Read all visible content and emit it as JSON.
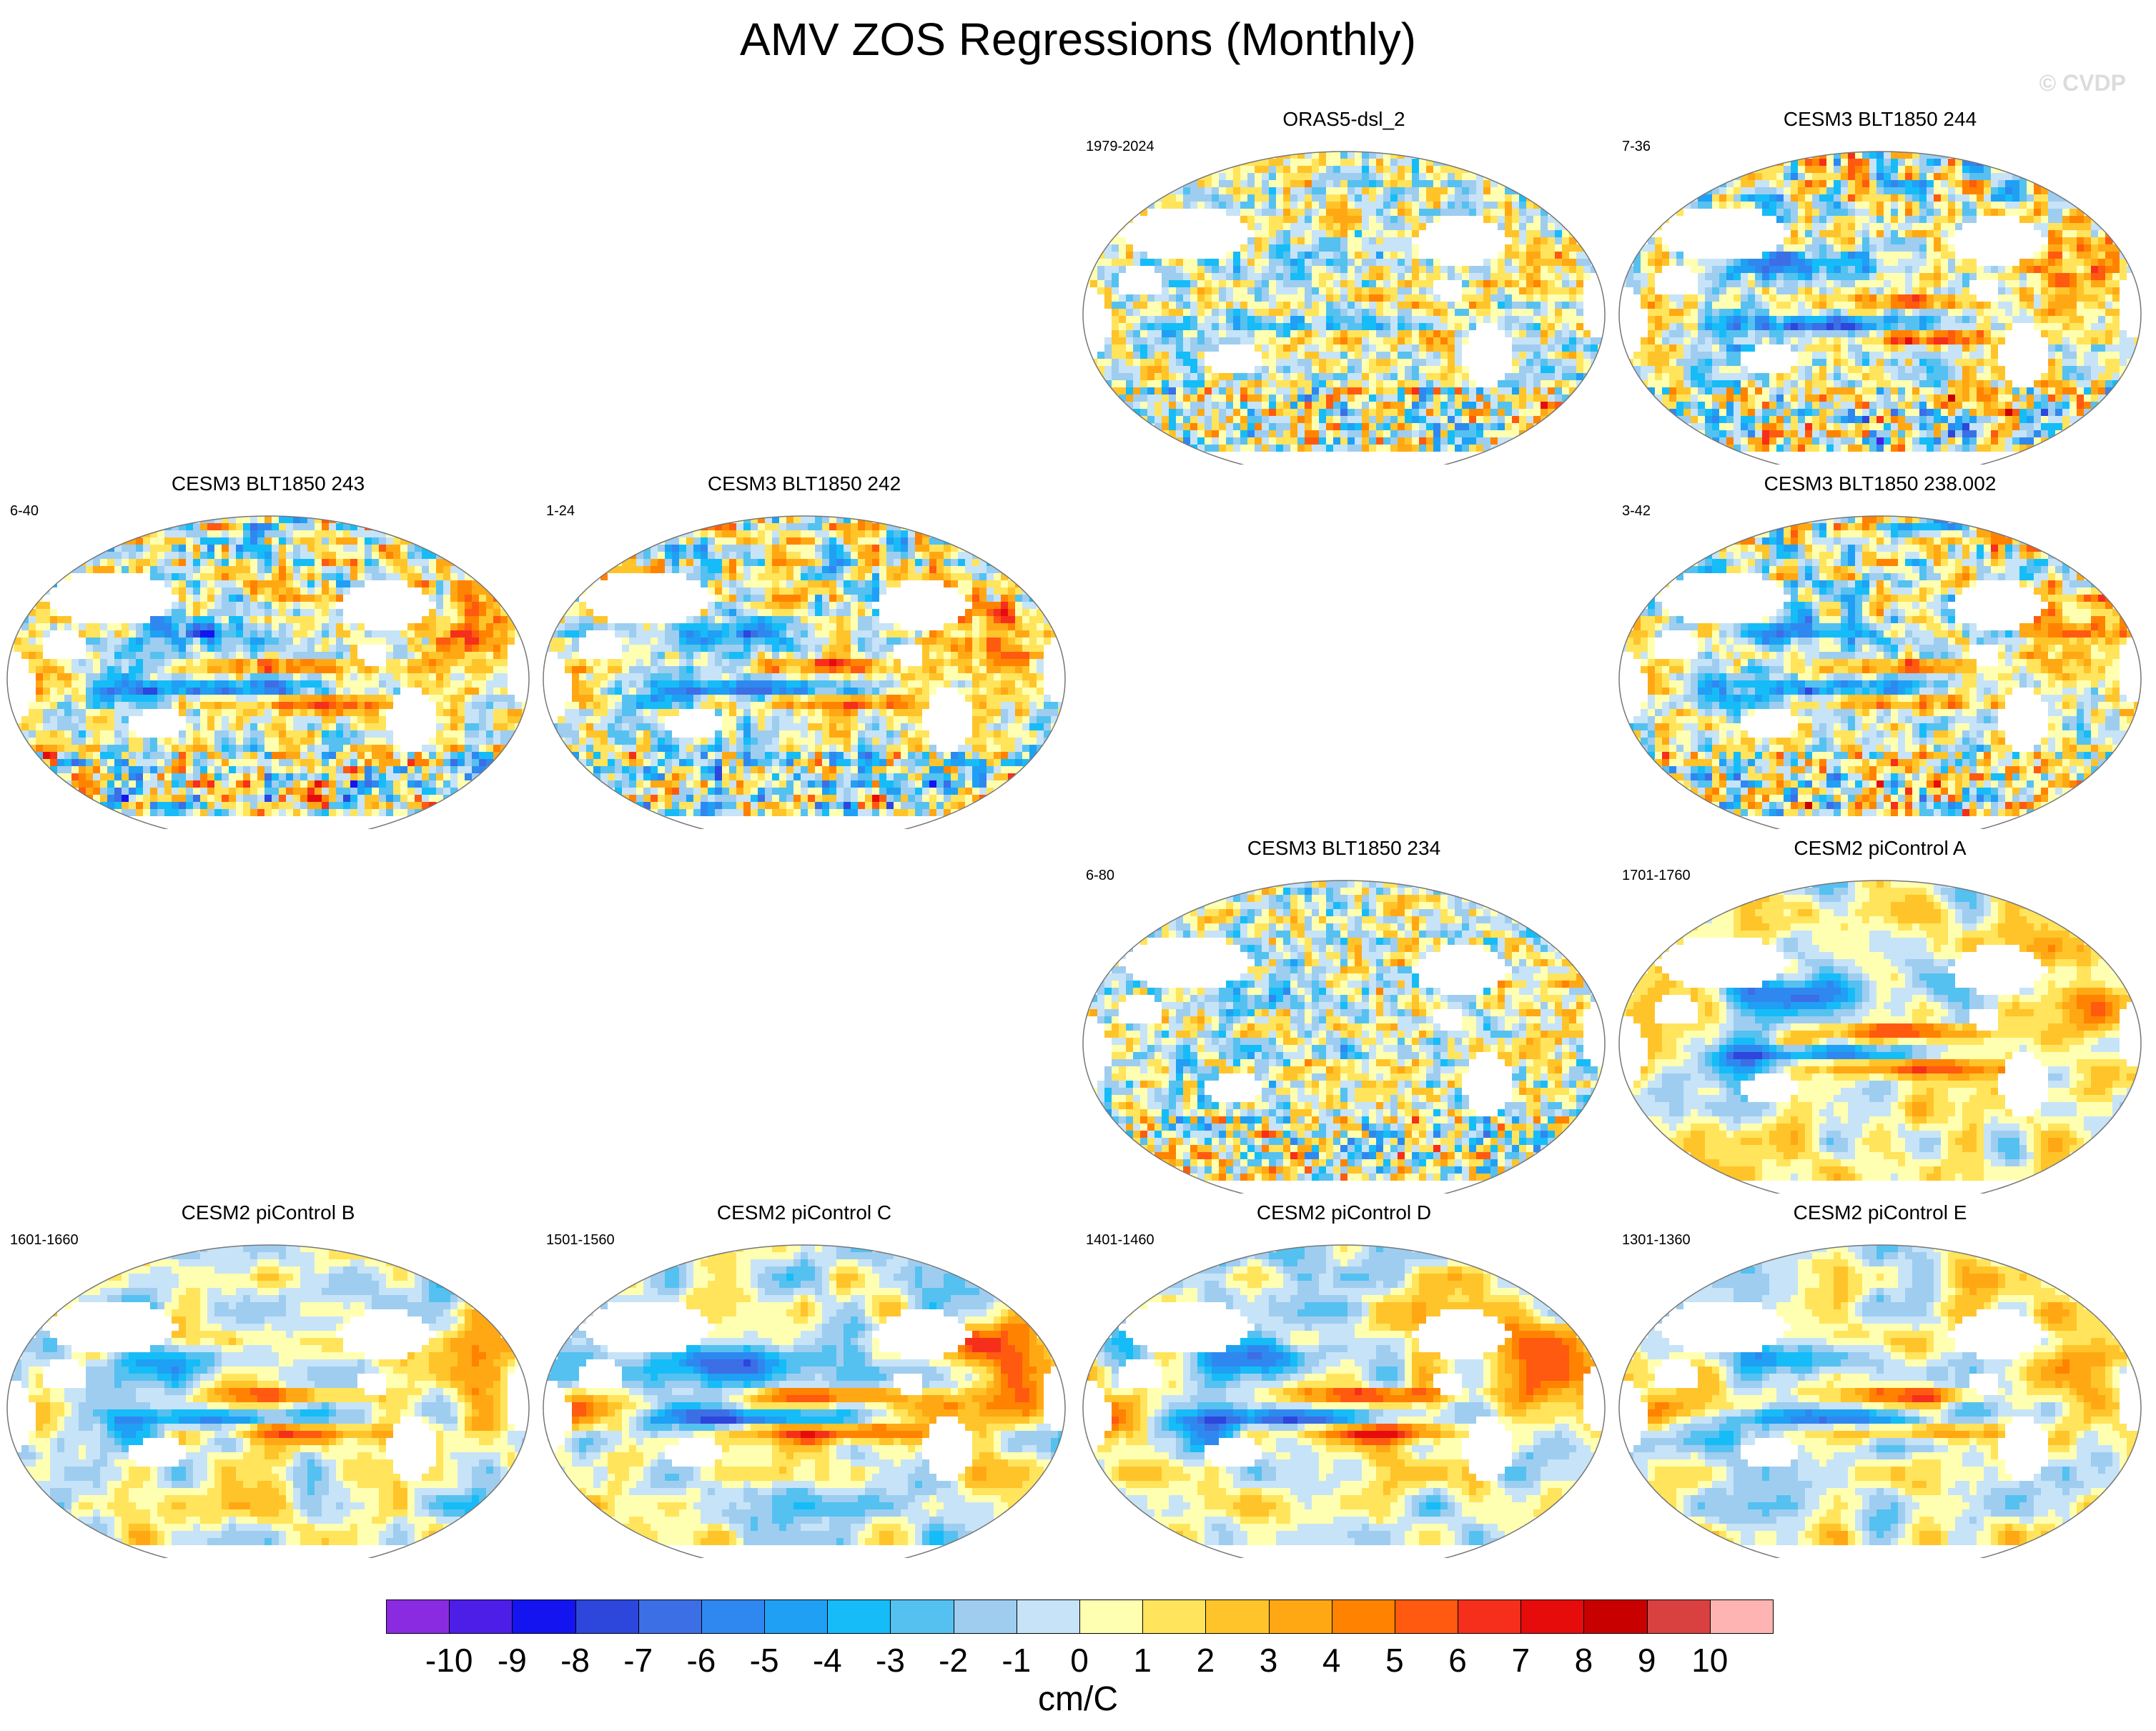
{
  "title": "AMV ZOS Regressions (Monthly)",
  "watermark": "© CVDP",
  "panels": [
    {
      "title": "ORAS5-dsl_2",
      "years": "1979-2024",
      "row": 0,
      "col": 2,
      "variant": "obs",
      "amp": 0.75
    },
    {
      "title": "CESM3 BLT1850 244",
      "years": "7-36",
      "row": 0,
      "col": 3,
      "variant": "model",
      "amp": 1.1
    },
    {
      "title": "CESM3 BLT1850 243",
      "years": "6-40",
      "row": 1,
      "col": 0,
      "variant": "model",
      "amp": 1.05
    },
    {
      "title": "CESM3 BLT1850 242",
      "years": "1-24",
      "row": 1,
      "col": 1,
      "variant": "model",
      "amp": 1.0
    },
    {
      "title": "CESM3 BLT1850 238.002",
      "years": "3-42",
      "row": 1,
      "col": 3,
      "variant": "model",
      "amp": 0.95
    },
    {
      "title": "CESM3 BLT1850 234",
      "years": "6-80",
      "row": 2,
      "col": 2,
      "variant": "obs",
      "amp": 0.65
    },
    {
      "title": "CESM2 piControl A",
      "years": "1701-1760",
      "row": 2,
      "col": 3,
      "variant": "smooth",
      "amp": 1.1
    },
    {
      "title": "CESM2 piControl B",
      "years": "1601-1660",
      "row": 3,
      "col": 0,
      "variant": "smooth",
      "amp": 0.9
    },
    {
      "title": "CESM2 piControl C",
      "years": "1501-1560",
      "row": 3,
      "col": 1,
      "variant": "smooth",
      "amp": 1.15
    },
    {
      "title": "CESM2 piControl D",
      "years": "1401-1460",
      "row": 3,
      "col": 2,
      "variant": "smooth",
      "amp": 1.1
    },
    {
      "title": "CESM2 piControl E",
      "years": "1301-1360",
      "row": 3,
      "col": 3,
      "variant": "smooth",
      "amp": 0.95
    }
  ],
  "colorbar": {
    "colors": [
      "#8a2be2",
      "#4c1ee8",
      "#1414f0",
      "#2d46dc",
      "#3c6ee6",
      "#2f88f0",
      "#1fa0f4",
      "#16bcf7",
      "#55c1f0",
      "#9ecdf0",
      "#c7e3f7",
      "#ffffb2",
      "#ffe45c",
      "#ffc42a",
      "#ffa814",
      "#ff8300",
      "#ff5a10",
      "#f52f1c",
      "#e60c0c",
      "#c80000",
      "#d94040",
      "#ffb4b4"
    ],
    "labels": [
      "-10",
      "-9",
      "-8",
      "-7",
      "-6",
      "-5",
      "-4",
      "-3",
      "-2",
      "-1",
      "0",
      "1",
      "2",
      "3",
      "4",
      "5",
      "6",
      "7",
      "8",
      "9",
      "10"
    ],
    "units": "cm/C",
    "min": -11,
    "max": 11
  }
}
